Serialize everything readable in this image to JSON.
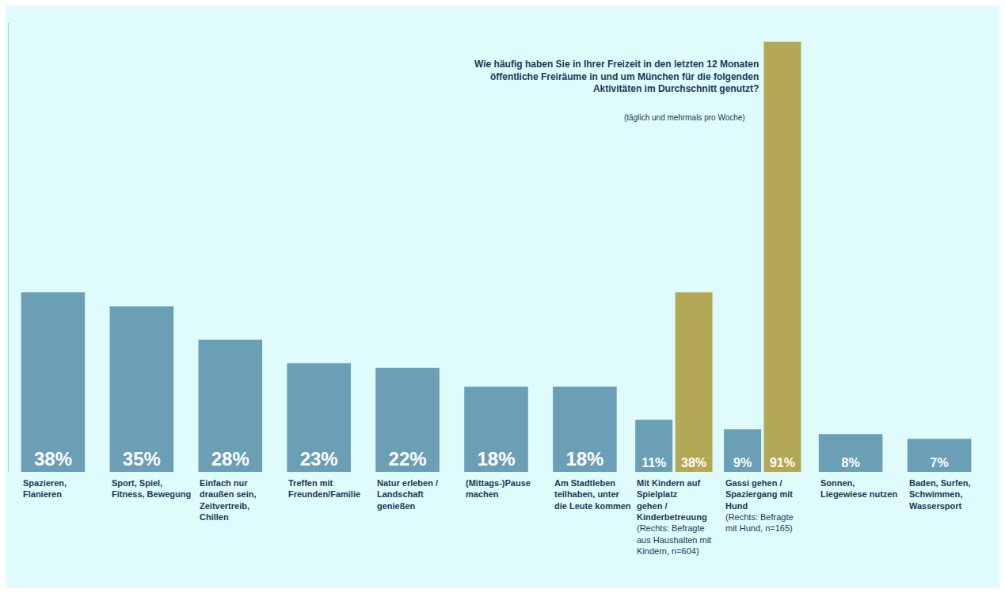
{
  "chart_data": {
    "type": "bar",
    "title": "Wie häufig haben Sie in Ihrer Freizeit in den letzten 12 Monaten öffentliche Freiräume in und um München für die folgenden Aktivitäten im Durchschnitt genutzt?",
    "subtitle": "(täglich und mehrmals pro Woche)",
    "categories": [
      "Spazieren, Flanieren",
      "Sport, Spiel, Fitness, Bewegung",
      "Einfach nur draußen sein, Zeitvertreib, Chillen",
      "Treffen mit Freunden/Familie",
      "Natur erleben / Landschaft genießen",
      "(Mittags-)Pause machen",
      "Am Stadtleben teilhaben, unter die Leute kommen",
      "Mit Kindern auf Spielplatz gehen / Kinderbetreuung",
      "Gassi gehen / Spaziergang mit Hund",
      "Sonnen, Liegewiese nutzen",
      "Baden, Surfen, Schwimmen, Wassersport"
    ],
    "category_notes": [
      null,
      null,
      null,
      null,
      null,
      null,
      null,
      "(Rechts: Befragte aus Haushalten mit Kindern, n=604)",
      "(Rechts: Befragte mit Hund, n=165)",
      null,
      null
    ],
    "series": [
      {
        "color": "#6a9fb6",
        "values": [
          38,
          35,
          28,
          23,
          22,
          18,
          18,
          11,
          9,
          8,
          7
        ],
        "value_labels": [
          "38%",
          "35%",
          "28%",
          "23%",
          "22%",
          "18%",
          "18%",
          "11%",
          "9%",
          "8%",
          "7%"
        ]
      },
      {
        "color": "#b3a856",
        "values": [
          null,
          null,
          null,
          null,
          null,
          null,
          null,
          38,
          91,
          null,
          null
        ],
        "value_labels": [
          null,
          null,
          null,
          null,
          null,
          null,
          null,
          "38%",
          "91%",
          null,
          null
        ]
      }
    ],
    "ylim": [
      0,
      95
    ],
    "data_labels": true,
    "tick_labels": false,
    "grid": false,
    "stacked": false
  }
}
